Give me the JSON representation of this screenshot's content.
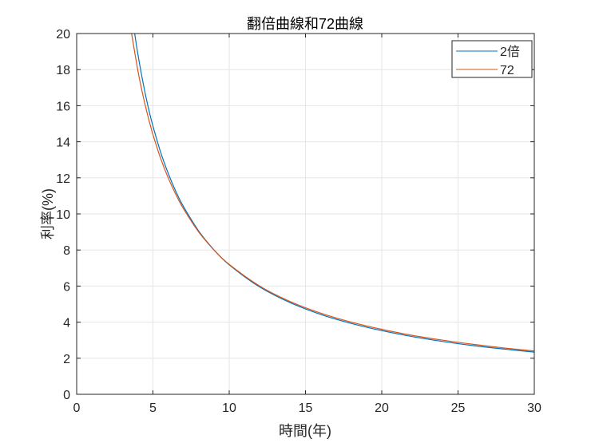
{
  "chart_data": {
    "type": "line",
    "title": "翻倍曲線和72曲線",
    "xlabel": "時間(年)",
    "ylabel": "利率(%)",
    "xlim": [
      0,
      30
    ],
    "ylim": [
      0,
      20
    ],
    "xticks": [
      0,
      5,
      10,
      15,
      20,
      25,
      30
    ],
    "yticks": [
      0,
      2,
      4,
      6,
      8,
      10,
      12,
      14,
      16,
      18,
      20
    ],
    "grid": true,
    "legend_position": "top-right",
    "series": [
      {
        "name": "2倍",
        "color": "#0072BD",
        "x": [
          3.8,
          4,
          4.25,
          4.5,
          4.75,
          5,
          5.5,
          6,
          6.5,
          7,
          8,
          9,
          10,
          12,
          14,
          16,
          18,
          20,
          22,
          24,
          26,
          28,
          30
        ],
        "y": [
          20.01,
          18.92,
          17.73,
          16.65,
          15.7,
          14.87,
          13.43,
          12.25,
          11.25,
          10.41,
          9.05,
          8.01,
          7.18,
          5.95,
          5.08,
          4.43,
          3.93,
          3.53,
          3.2,
          2.93,
          2.7,
          2.51,
          2.34
        ]
      },
      {
        "name": "72",
        "color": "#D95319",
        "x": [
          3.6,
          4,
          4.25,
          4.5,
          4.75,
          5,
          5.5,
          6,
          6.5,
          7,
          8,
          9,
          10,
          12,
          14,
          16,
          18,
          20,
          22,
          24,
          26,
          28,
          30
        ],
        "y": [
          20,
          18,
          16.94,
          16,
          15.16,
          14.4,
          13.09,
          12,
          11.08,
          10.29,
          9,
          8,
          7.2,
          6,
          5.14,
          4.5,
          4,
          3.6,
          3.27,
          3,
          2.77,
          2.57,
          2.4
        ]
      }
    ]
  }
}
